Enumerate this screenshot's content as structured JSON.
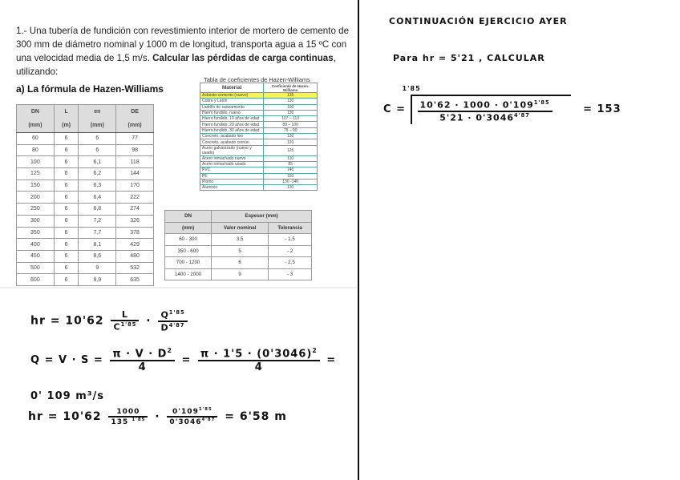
{
  "problem": {
    "text_plain": "1.- Una tubería de fundición con revestimiento interior de mortero de cemento de 300 mm de diámetro nominal y 1000 m de longitud, transporta agua a 15 ºC con una velocidad media de 1,5 m/s.",
    "text_bold": "Calcular las pérdidas de carga continuas",
    "text_end": ", utilizando:"
  },
  "subtitle": "a)   La fórmula de Hazen-Williams",
  "dn_table": {
    "headers": [
      [
        "DN",
        "(mm)"
      ],
      [
        "L",
        "(m)"
      ],
      [
        "en",
        "(mm)"
      ],
      [
        "DE",
        "(mm)"
      ]
    ],
    "rows": [
      [
        "60",
        "6",
        "6",
        "77"
      ],
      [
        "80",
        "6",
        "6",
        "98"
      ],
      [
        "100",
        "6",
        "6,1",
        "118"
      ],
      [
        "125",
        "6",
        "6,2",
        "144"
      ],
      [
        "150",
        "6",
        "6,3",
        "170"
      ],
      [
        "200",
        "6",
        "6,4",
        "222"
      ],
      [
        "250",
        "6",
        "6,8",
        "274"
      ],
      [
        "300",
        "6",
        "7,2",
        "326"
      ],
      [
        "350",
        "6",
        "7,7",
        "378"
      ],
      [
        "400",
        "6",
        "8,1",
        "429"
      ],
      [
        "450",
        "6",
        "8,6",
        "480"
      ],
      [
        "500",
        "6",
        "9",
        "532"
      ],
      [
        "600",
        "6",
        "9,9",
        "635"
      ]
    ]
  },
  "hw_table": {
    "title": "Tabla de coeficientes de Hazen-Williams",
    "headers": [
      "Material",
      "Coeficiente de Hazen-Williams"
    ],
    "highlight_color": "#f5f25a",
    "rows": [
      [
        "Asbesto-cemento (nuevo)",
        "135"
      ],
      [
        "Cobre y Latón",
        "130"
      ],
      [
        "Ladrillo de saneamiento",
        "100"
      ],
      [
        "Hierro fundido, nuevo",
        "130"
      ],
      [
        "Hierro fundido, 10 años de edad",
        "107 – 113"
      ],
      [
        "Hierro fundido, 20 años de edad",
        "89 – 100"
      ],
      [
        "Hierro fundido, 30 años de edad",
        "75 – 90"
      ],
      [
        "Concreto, acabado liso",
        "130"
      ],
      [
        "Concreto, acabado común",
        "120"
      ],
      [
        "Acero galvanizado (nuevo y usado)",
        "125"
      ],
      [
        "Acero remachado nuevo",
        "110"
      ],
      [
        "Acero remachado usado",
        "85"
      ],
      [
        "PVC",
        "140"
      ],
      [
        "PE",
        "150"
      ],
      [
        "Plomo",
        "130 -140"
      ],
      [
        "Aluminio",
        "130"
      ]
    ]
  },
  "thickness_table": {
    "h_dn": "DN",
    "h_mm": "(mm)",
    "h_espesor": "Espesor (mm)",
    "h_nominal": "Valor nominal",
    "h_tol": "Tolerancia",
    "rows": [
      [
        "60 - 300",
        "3,5",
        "- 1,5"
      ],
      [
        "350 - 600",
        "5",
        "- 2"
      ],
      [
        "700 - 1200",
        "6",
        "- 2,5"
      ],
      [
        "1400 - 2000",
        "9",
        "- 3"
      ]
    ]
  },
  "notes_left": {
    "l1": {
      "lhs": "hr = 10'62",
      "f1n": "L",
      "f1d": "C",
      "e1": "1'85",
      "f2n": "Q",
      "e2": "1'85",
      "f2d": "D",
      "e3": "4'87"
    },
    "l2": {
      "lhs": "Q = V · S =",
      "f1n": "π · V · D",
      "sq": "2",
      "f1d": "4",
      "eq": "=",
      "f2n": "π · 1'5 · (0'3046)",
      "f2d": "4",
      "end": "="
    },
    "l3": "0' 109 m³/s",
    "l4": {
      "lhs": "hr = 10'62",
      "f1n": "1000",
      "f1d": "135",
      "e1": "1'85",
      "f2n": "0'109",
      "e2": "1'85",
      "f2d": "0'3046",
      "e3": "4'87",
      "result": "= 6'58 m"
    }
  },
  "notes_right": {
    "title": "CONTINUACIÓN EJERCICIO AYER",
    "line2": "Para  hr = 5'21 ,  CALCULAR",
    "formula": {
      "lhs": "C =",
      "root_index": "1'85",
      "num": "10'62 · 1000 ·  0'109",
      "num_exp": "1'85",
      "den": "5'21 · 0'3046",
      "den_exp": "4'87",
      "result": "= 153"
    }
  }
}
